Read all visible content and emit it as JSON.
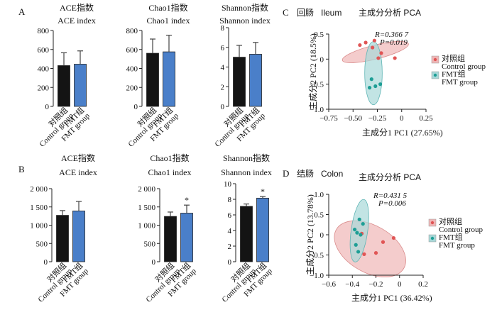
{
  "colors": {
    "control_bar": "#141414",
    "fmt_bar": "#4a7fc9",
    "control_point": "#e05555",
    "fmt_point": "#1d9e95",
    "control_ellipse": "#efb7b7",
    "fmt_ellipse": "#a8d8d8"
  },
  "panels": {
    "A": {
      "letter": "A"
    },
    "B": {
      "letter": "B"
    },
    "C": {
      "letter": "C",
      "title_cn": "回肠",
      "title_en": "Ileum",
      "subtitle": "主成分分析 PCA"
    },
    "D": {
      "letter": "D",
      "title_cn": "结肠",
      "title_en": "Colon",
      "subtitle": "主成分分析 PCA"
    }
  },
  "chart_data": [
    {
      "id": "A1",
      "type": "bar",
      "title": "ACE指数",
      "subtitle": "ACE index",
      "categories": [
        "对照组 Control group",
        "FMT组 FMT group"
      ],
      "values": [
        430,
        445
      ],
      "errors": [
        135,
        140
      ],
      "ylim": [
        0,
        800
      ],
      "yticks": [
        "0",
        "200",
        "400",
        "600",
        "800"
      ],
      "significance": [
        "",
        ""
      ]
    },
    {
      "id": "A2",
      "type": "bar",
      "title": "Chao1指数",
      "subtitle": "Chao1 index",
      "categories": [
        "对照组 Control group",
        "FMT组 FMT group"
      ],
      "values": [
        560,
        575
      ],
      "errors": [
        150,
        175
      ],
      "ylim": [
        0,
        800
      ],
      "yticks": [
        "0",
        "200",
        "400",
        "600",
        "800"
      ],
      "significance": [
        "",
        ""
      ]
    },
    {
      "id": "A3",
      "type": "bar",
      "title": "Shannon指数",
      "subtitle": "Shannon index",
      "categories": [
        "对照组 Control group",
        "FMT组 FMT group"
      ],
      "values": [
        5.0,
        5.3
      ],
      "errors": [
        1.2,
        1.2
      ],
      "ylim": [
        0,
        8
      ],
      "yticks": [
        "0",
        "2",
        "4",
        "6",
        "8"
      ],
      "significance": [
        "",
        ""
      ]
    },
    {
      "id": "B1",
      "type": "bar",
      "title": "ACE指数",
      "subtitle": "ACE index",
      "categories": [
        "对照组 Control group",
        "FMT组 FMT group"
      ],
      "values": [
        1270,
        1390
      ],
      "errors": [
        130,
        260
      ],
      "ylim": [
        0,
        2000
      ],
      "yticks": [
        "0",
        "500",
        "1 000",
        "1 500",
        "2 000"
      ],
      "significance": [
        "",
        ""
      ]
    },
    {
      "id": "B2",
      "type": "bar",
      "title": "Chao1指数",
      "subtitle": "Chao1 index",
      "categories": [
        "对照组 Control group",
        "FMT组 FMT group"
      ],
      "values": [
        1240,
        1330
      ],
      "errors": [
        120,
        220
      ],
      "ylim": [
        0,
        2000
      ],
      "yticks": [
        "0",
        "500",
        "1 000",
        "1 500",
        "2 000"
      ],
      "significance": [
        "",
        "*"
      ]
    },
    {
      "id": "B3",
      "type": "bar",
      "title": "Shannon指数",
      "subtitle": "Shannon index",
      "categories": [
        "对照组 Control group",
        "FMT组 FMT group"
      ],
      "values": [
        7.1,
        8.15
      ],
      "errors": [
        0.3,
        0.2
      ],
      "ylim": [
        0,
        10
      ],
      "yticks": [
        "0",
        "2",
        "4",
        "6",
        "8",
        "10"
      ],
      "significance": [
        "",
        "*"
      ]
    },
    {
      "id": "C",
      "type": "scatter",
      "xlabel": "主成分1 PC1 (27.65%)",
      "ylabel": "主成分2 PC2 (18.5%)",
      "xlim": [
        -0.75,
        0.25
      ],
      "ylim": [
        -1.0,
        0.5
      ],
      "xticks": [
        "−0.75",
        "−0.50",
        "−0.25",
        "0",
        "0.25"
      ],
      "xtick_values": [
        -0.75,
        -0.5,
        -0.25,
        0,
        0.25
      ],
      "yticks": [
        "0.5",
        "0",
        "−0.5",
        "−1.0"
      ],
      "ytick_values": [
        0.5,
        0,
        -0.5,
        -1.0
      ],
      "stat_r": "R=0.366 7",
      "stat_p": "P=0.019",
      "legend": [
        "对照组 Control group",
        "FMT组 FMT group"
      ],
      "series": [
        {
          "name": "对照组 Control group",
          "points": [
            [
              -0.37,
              0.33
            ],
            [
              -0.28,
              0.37
            ],
            [
              -0.43,
              0.28
            ],
            [
              -0.3,
              0.23
            ],
            [
              -0.21,
              0.12
            ],
            [
              -0.07,
              0.02
            ],
            [
              -0.24,
              0.02
            ]
          ],
          "ellipse": {
            "cx": -0.27,
            "cy": 0.14,
            "rx": 0.35,
            "ry": 0.14,
            "angle": 14
          }
        },
        {
          "name": "FMT组 FMT group",
          "points": [
            [
              -0.31,
              -0.4
            ],
            [
              -0.33,
              -0.57
            ],
            [
              -0.27,
              -0.54
            ],
            [
              -0.22,
              -0.5
            ]
          ],
          "ellipse": {
            "cx": -0.29,
            "cy": -0.28,
            "rx": 0.09,
            "ry": 0.63,
            "angle": 0
          }
        }
      ]
    },
    {
      "id": "D",
      "type": "scatter",
      "xlabel": "主成分1 PC1 (36.42%)",
      "ylabel": "主成分2 PC2 (13.78%)",
      "xlim": [
        -0.6,
        0.2
      ],
      "ylim": [
        -1.0,
        1.0
      ],
      "xticks": [
        "−0.6",
        "−0.4",
        "−0.2",
        "0",
        "0.2"
      ],
      "xtick_values": [
        -0.6,
        -0.4,
        -0.2,
        0,
        0.2
      ],
      "yticks": [
        "1.0",
        "0.5",
        "0",
        "−0.5",
        "−1.0"
      ],
      "ytick_values": [
        1.0,
        0.5,
        0,
        -0.5,
        -1.0
      ],
      "stat_r": "R=0.431 5",
      "stat_p": "P=0.006",
      "legend": [
        "对照组 Control group",
        "FMT组 FMT group"
      ],
      "series": [
        {
          "name": "对照组 Control group",
          "points": [
            [
              -0.32,
              0.03
            ],
            [
              -0.05,
              -0.08
            ],
            [
              -0.14,
              -0.18
            ],
            [
              -0.2,
              -0.45
            ],
            [
              -0.3,
              -0.48
            ]
          ],
          "ellipse": {
            "cx": -0.25,
            "cy": -0.35,
            "rx": 0.33,
            "ry": 0.58,
            "angle": -30
          }
        },
        {
          "name": "FMT组 FMT group",
          "points": [
            [
              -0.34,
              0.38
            ],
            [
              -0.31,
              0.27
            ],
            [
              -0.36,
              0.05
            ],
            [
              -0.33,
              0.0
            ],
            [
              -0.37,
              -0.25
            ],
            [
              -0.35,
              -0.42
            ],
            [
              -0.38,
              0.13
            ]
          ],
          "ellipse": {
            "cx": -0.34,
            "cy": 0.1,
            "rx": 0.07,
            "ry": 0.78,
            "angle": -8
          }
        }
      ]
    }
  ]
}
